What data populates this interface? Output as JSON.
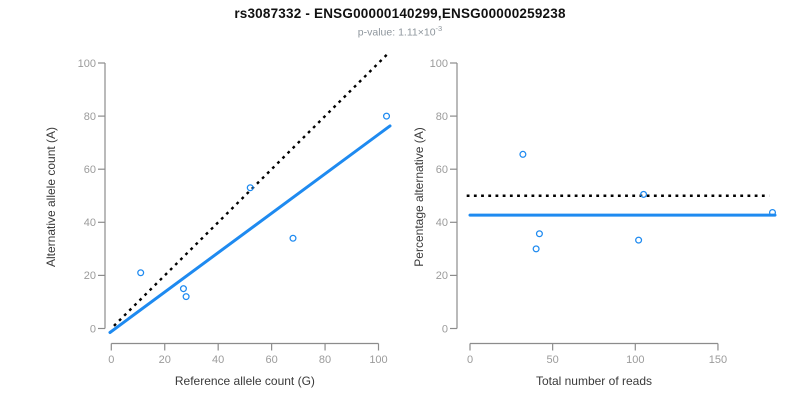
{
  "header": {
    "title": "rs3087332 - ENSG00000140299,ENSG00000259238",
    "subtitle_label": "p-value: ",
    "subtitle_value": "1.11×10",
    "subtitle_exponent": "-3"
  },
  "colors": {
    "accent_blue": "#1E8AF0",
    "dotted_black": "#000000",
    "axis_line": "#8c8c8c",
    "tick_label": "#9b9b9b",
    "axis_title": "#3a3a3a",
    "title_text": "#111111",
    "subtitle_text": "#8e969d",
    "background": "#ffffff"
  },
  "chart_data": [
    {
      "type": "scatter",
      "name": "allele-counts",
      "xlabel": "Reference allele count (G)",
      "ylabel": "Alternative allele count (A)",
      "xlim": [
        0,
        100
      ],
      "ylim": [
        0,
        100
      ],
      "xticks": [
        0,
        20,
        40,
        60,
        80,
        100
      ],
      "yticks": [
        0,
        20,
        40,
        60,
        80,
        100
      ],
      "grid": false,
      "legend": "none",
      "points": [
        [
          11,
          21
        ],
        [
          27,
          15
        ],
        [
          28,
          12
        ],
        [
          52,
          53
        ],
        [
          68,
          34
        ],
        [
          103,
          80
        ]
      ],
      "lines": [
        {
          "name": "expected-identity-line",
          "style": "dotted",
          "color": "#000000",
          "from": [
            1,
            1
          ],
          "to": [
            104.2,
            104.2
          ]
        },
        {
          "name": "fitted-ratio-line",
          "style": "solid",
          "color": "#1E8AF0",
          "from": [
            -0.5,
            -1.5
          ],
          "to": [
            104.3,
            76.3
          ]
        }
      ]
    },
    {
      "type": "scatter",
      "name": "percentage-vs-coverage",
      "xlabel": "Total number of reads",
      "ylabel": "Percentage alternative (A)",
      "xlim": [
        0,
        150
      ],
      "ylim": [
        0,
        100
      ],
      "xticks": [
        0,
        50,
        100,
        150
      ],
      "yticks": [
        0,
        20,
        40,
        60,
        80,
        100
      ],
      "grid": false,
      "legend": "none",
      "points": [
        [
          32,
          65.6
        ],
        [
          42,
          35.7
        ],
        [
          40,
          30
        ],
        [
          102,
          33.3
        ],
        [
          105,
          50.5
        ],
        [
          183,
          43.7
        ]
      ],
      "lines": [
        {
          "name": "expected-50pct-line",
          "style": "dotted",
          "color": "#000000",
          "from": [
            -2,
            50
          ],
          "to": [
            181,
            50
          ]
        },
        {
          "name": "observed-pct-line",
          "style": "solid",
          "color": "#1E8AF0",
          "from": [
            0,
            42.7
          ],
          "to": [
            184.5,
            42.7
          ]
        }
      ]
    }
  ]
}
